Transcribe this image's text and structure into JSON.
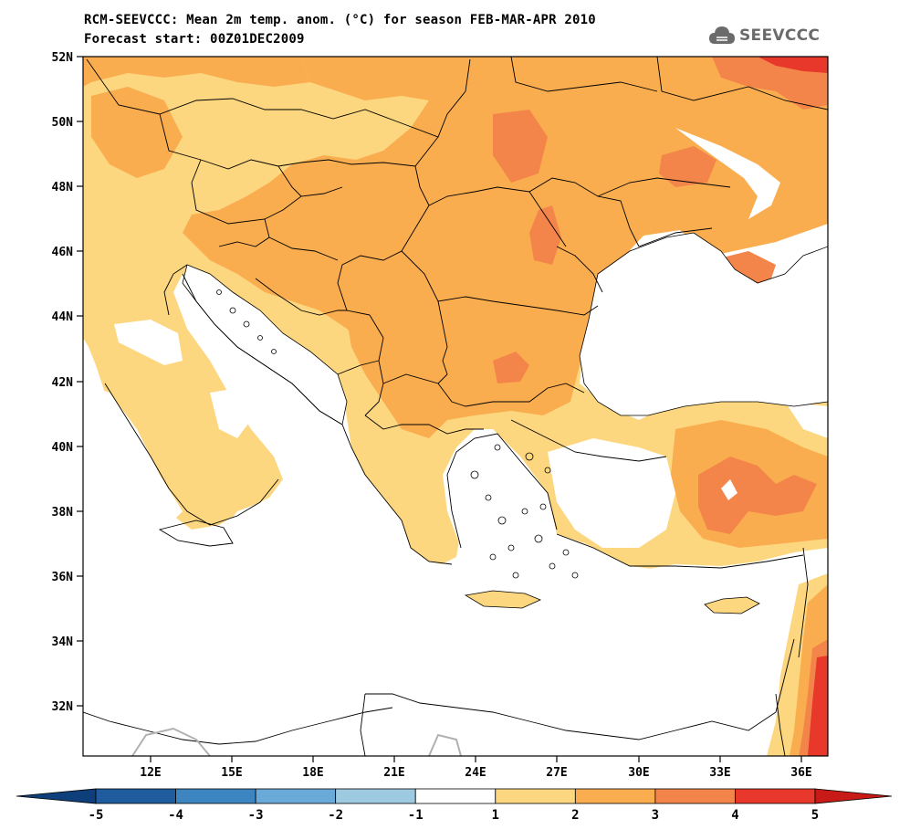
{
  "header": {
    "title": "RCM-SEEVCCC: Mean 2m temp. anom. (°C) for season FEB-MAR-APR 2010",
    "subtitle": "Forecast start: 00Z01DEC2009"
  },
  "logo": {
    "text": "SEEVCCC",
    "icon": "cloud-logo-icon"
  },
  "map": {
    "type": "filled-contour-map",
    "lon_range": [
      9.5,
      37.0
    ],
    "lat_range": [
      30.5,
      52.0
    ],
    "lat_ticks": [
      "52N",
      "50N",
      "48N",
      "46N",
      "44N",
      "42N",
      "40N",
      "38N",
      "36N",
      "34N",
      "32N"
    ],
    "lon_ticks": [
      "12E",
      "15E",
      "18E",
      "21E",
      "24E",
      "27E",
      "30E",
      "33E",
      "36E"
    ]
  },
  "colorbar": {
    "labels": [
      "-5",
      "-4",
      "-3",
      "-2",
      "-1",
      "1",
      "2",
      "3",
      "4",
      "5"
    ],
    "colors": [
      "#1f5c9e",
      "#3d85c0",
      "#6aaad8",
      "#9ecae1",
      "#ffffff",
      "#fcd77f",
      "#f9ad4f",
      "#f4854a",
      "#e8372b"
    ],
    "under_color": "#0f3f7a",
    "over_color": "#c81a16"
  }
}
